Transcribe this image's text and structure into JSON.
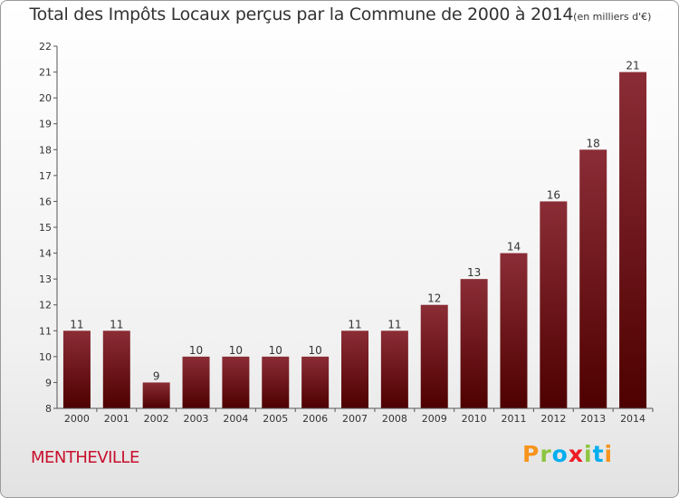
{
  "chart_data": {
    "type": "bar",
    "title": "Total des Impôts Locaux perçus par la Commune de 2000 à 2014",
    "unit_note": "(en milliers d'€)",
    "categories": [
      "2000",
      "2001",
      "2002",
      "2003",
      "2004",
      "2005",
      "2006",
      "2007",
      "2008",
      "2009",
      "2010",
      "2011",
      "2012",
      "2013",
      "2014"
    ],
    "values": [
      11,
      11,
      9,
      10,
      10,
      10,
      10,
      11,
      11,
      12,
      13,
      14,
      16,
      18,
      21
    ],
    "ylim": [
      8,
      22
    ],
    "yticks": [
      8,
      9,
      10,
      11,
      12,
      13,
      14,
      15,
      16,
      17,
      18,
      19,
      20,
      21,
      22
    ],
    "grid": false,
    "bar_color_top": "#8b2d36",
    "bar_color_bottom": "#4e0000",
    "xlabel": "",
    "ylabel": ""
  },
  "commune_name": "MENTHEVILLE",
  "logo": {
    "p": "P",
    "r": "r",
    "o": "o",
    "x": "x",
    "i1": "i",
    "t": "t",
    "i2": "i"
  }
}
